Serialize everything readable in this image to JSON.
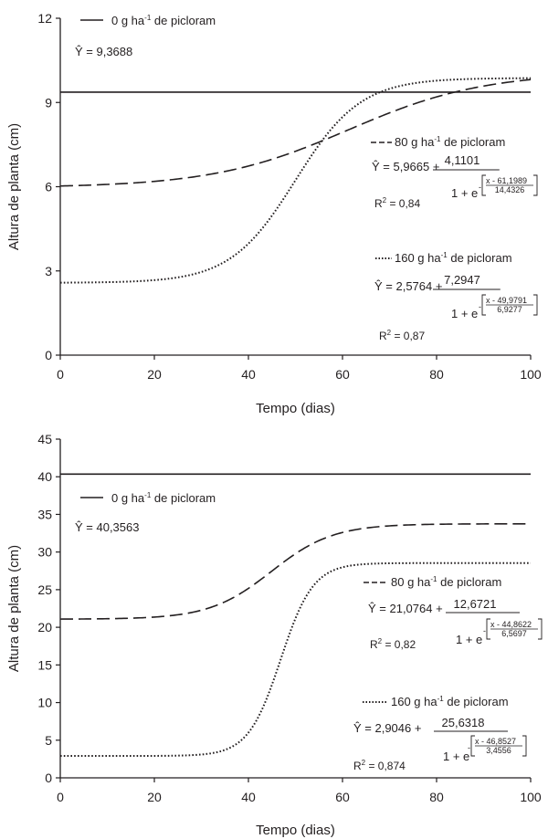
{
  "chart_data": [
    {
      "type": "line",
      "xlabel": "Tempo (dias)",
      "ylabel": "Altura de planta (cm)",
      "xlim": [
        0,
        100
      ],
      "ylim": [
        0,
        12
      ],
      "xticks": [
        "0",
        "20",
        "40",
        "60",
        "80",
        "100"
      ],
      "yticks": [
        "0",
        "3",
        "6",
        "9",
        "12"
      ],
      "grid": false,
      "series": [
        {
          "name": "0 g ha-1 de picloram",
          "line_style": "solid",
          "legend": {
            "swatch_label": "0 g ha",
            "sup": "-1",
            "rest": " de picloram"
          },
          "model": {
            "type": "constant",
            "a": 9.3688
          },
          "equation": {
            "lhs": "Ŷ = ",
            "intercept": "9,3688"
          },
          "x": [
            0,
            20,
            40,
            60,
            80,
            100
          ],
          "y": [
            9.37,
            9.37,
            9.37,
            9.37,
            9.37,
            9.37
          ]
        },
        {
          "name": "80 g ha-1 de picloram",
          "line_style": "dashed",
          "legend": {
            "swatch_label": "80 g ha",
            "sup": "-1",
            "rest": " de picloram"
          },
          "model": {
            "type": "logistic",
            "a": 5.9665,
            "b": 4.1101,
            "x0": 61.1989,
            "k": 14.4326
          },
          "equation": {
            "lhs": "Ŷ = ",
            "intercept": "5,9665 +",
            "numerator": "4,1101",
            "denom_prefix": "1 + e",
            "exp_num": "x - 61,1989",
            "exp_den": "14,4326",
            "r2_label": "R",
            "r2_sup": "2",
            "r2_value": " = 0,84"
          },
          "x": [
            0,
            20,
            40,
            60,
            80,
            100
          ],
          "y": [
            6.02,
            6.16,
            6.74,
            7.99,
            9.24,
            9.87
          ]
        },
        {
          "name": "160 g ha-1 de picloram",
          "line_style": "dotted",
          "legend": {
            "swatch_label": "160 g ha",
            "sup": "-1",
            "rest": " de picloram"
          },
          "model": {
            "type": "logistic",
            "a": 2.5764,
            "b": 7.2947,
            "x0": 49.9791,
            "k": 6.9277
          },
          "equation": {
            "lhs": "Ŷ = ",
            "intercept": "2,5764 +",
            "numerator": "7,2947",
            "denom_prefix": "1 + e",
            "exp_num": "x - 49,9791",
            "exp_den": "6,9277",
            "r2_label": "R",
            "r2_sup": "2",
            "r2_value": " = 0,87"
          },
          "x": [
            0,
            20,
            40,
            60,
            80,
            100
          ],
          "y": [
            2.58,
            2.67,
            3.67,
            9.06,
            9.84,
            9.87
          ]
        }
      ]
    },
    {
      "type": "line",
      "xlabel": "Tempo (dias)",
      "ylabel": "Altura de planta (cm)",
      "xlim": [
        0,
        100
      ],
      "ylim": [
        0,
        45
      ],
      "xticks": [
        "0",
        "20",
        "40",
        "60",
        "80",
        "100"
      ],
      "yticks": [
        "0",
        "5",
        "10",
        "15",
        "20",
        "25",
        "30",
        "35",
        "40",
        "45"
      ],
      "grid": false,
      "series": [
        {
          "name": "0 g ha-1 de picloram",
          "line_style": "solid",
          "legend": {
            "swatch_label": "0 g ha",
            "sup": "-1",
            "rest": " de picloram"
          },
          "model": {
            "type": "constant",
            "a": 40.3563
          },
          "equation": {
            "lhs": "Ŷ = ",
            "intercept": "40,3563"
          },
          "x": [
            0,
            20,
            40,
            60,
            80,
            100
          ],
          "y": [
            40.36,
            40.36,
            40.36,
            40.36,
            40.36,
            40.36
          ]
        },
        {
          "name": "80 g ha-1 de picloram",
          "line_style": "dashed",
          "legend": {
            "swatch_label": "80 g ha",
            "sup": "-1",
            "rest": " de picloram"
          },
          "model": {
            "type": "logistic",
            "a": 21.0764,
            "b": 12.6721,
            "x0": 44.8622,
            "k": 6.5697
          },
          "equation": {
            "lhs": "Ŷ = ",
            "intercept": "21,0764 +",
            "numerator": "12,6721",
            "denom_prefix": "1 + e",
            "exp_num": "x - 44,8622",
            "exp_den": "6,5697",
            "r2_label": "R",
            "r2_sup": "2",
            "r2_value": " = 0,82"
          },
          "x": [
            0,
            20,
            40,
            60,
            80,
            100
          ],
          "y": [
            21.08,
            21.31,
            25.28,
            32.7,
            33.7,
            33.75
          ]
        },
        {
          "name": "160 g ha-1 de picloram",
          "line_style": "dotted",
          "legend": {
            "swatch_label": "160 g ha",
            "sup": "-1",
            "rest": " de picloram"
          },
          "model": {
            "type": "logistic",
            "a": 2.9046,
            "b": 25.6318,
            "x0": 46.8527,
            "k": 3.4556
          },
          "equation": {
            "lhs": "Ŷ = ",
            "intercept": "2,9046 +",
            "numerator": "25,6318",
            "denom_prefix": "1 + e",
            "exp_num": "x - 46,8527",
            "exp_den": "3,4556",
            "r2_label": "R",
            "r2_sup": "2",
            "r2_value": " = 0,874"
          },
          "x": [
            0,
            20,
            40,
            60,
            80,
            100
          ],
          "y": [
            2.9,
            2.91,
            4.65,
            28.4,
            28.54,
            28.54
          ]
        }
      ]
    }
  ]
}
